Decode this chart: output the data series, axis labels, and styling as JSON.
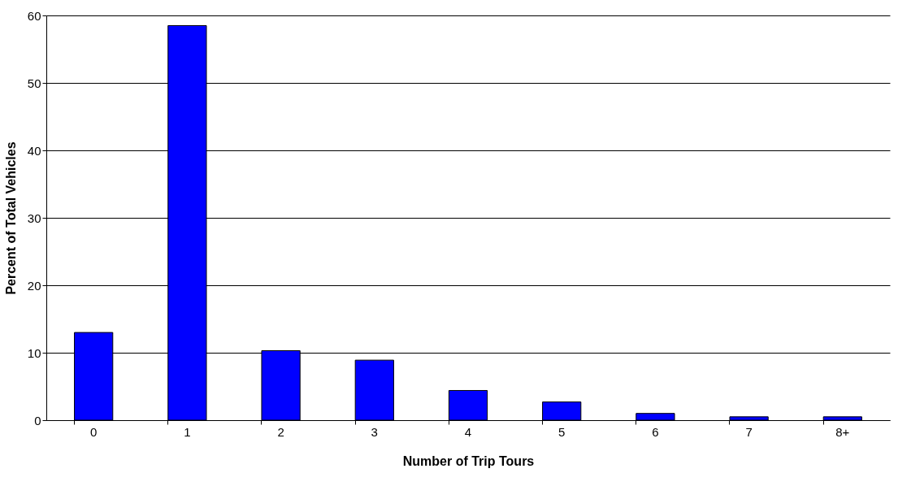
{
  "chart_data": {
    "type": "bar",
    "xlabel": "Number of Trip Tours",
    "ylabel": "Percent of Total Vehicles",
    "categories": [
      "0",
      "1",
      "2",
      "3",
      "4",
      "5",
      "6",
      "7",
      "8+"
    ],
    "values": [
      13.0,
      58.5,
      10.3,
      8.9,
      4.4,
      2.7,
      1.0,
      0.5,
      0.5
    ],
    "color": "#0000ff",
    "ylim": [
      0,
      60
    ],
    "yticks": [
      0,
      10,
      20,
      30,
      40,
      50,
      60
    ],
    "grid": "y"
  }
}
